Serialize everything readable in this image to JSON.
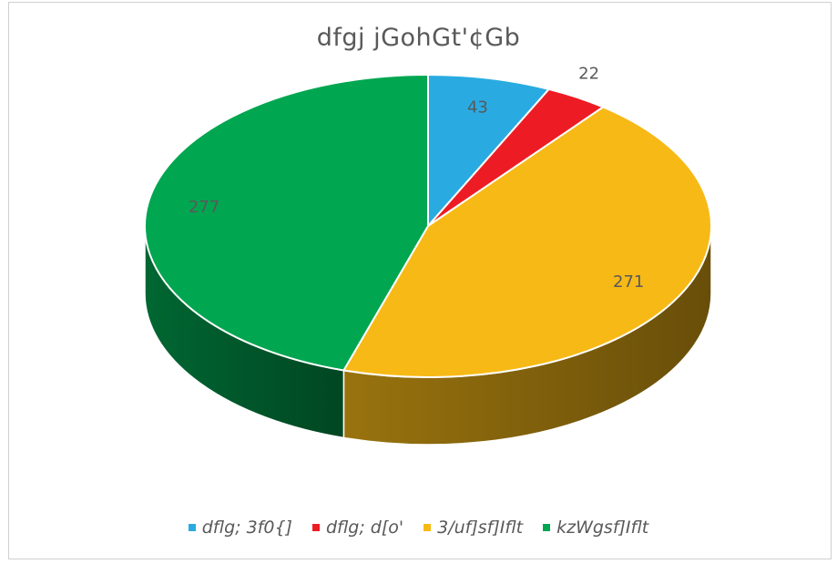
{
  "chart_data": {
    "type": "pie",
    "title": "dfgj jGohGt'¢Gb",
    "slices": [
      {
        "label": "dflg; 3f0{]",
        "value": 43,
        "color": "#29abe2"
      },
      {
        "label": "dflg; d[o'",
        "value": 22,
        "color": "#ed1c24"
      },
      {
        "label": "3/uf]sf]Iflt",
        "value": 271,
        "color": "#f7b916"
      },
      {
        "label": "kzWgsf]Iflt",
        "value": 277,
        "color": "#00a650"
      }
    ],
    "style": "3d",
    "legend": "bottom"
  }
}
